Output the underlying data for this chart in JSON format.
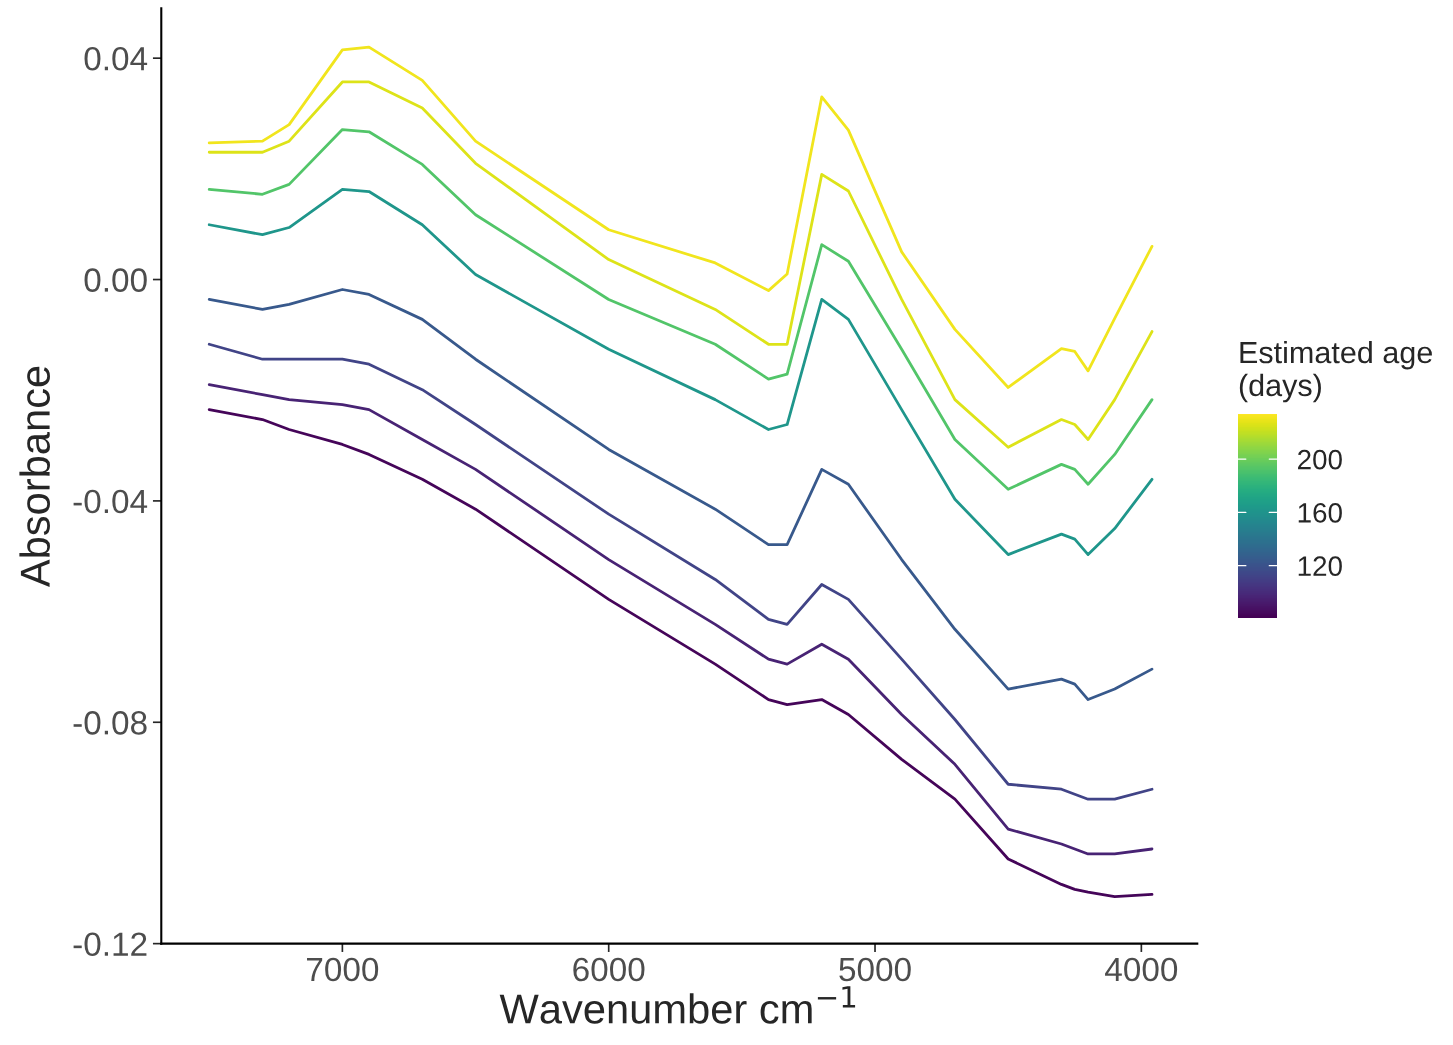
{
  "chart_data": {
    "type": "line",
    "xlabel": "Wavenumber cm$^{−1}$",
    "ylabel": "Absorbance",
    "clabel": "Estimated age\n(days)",
    "x": [
      7500,
      7300,
      7200,
      7000,
      6900,
      6700,
      6500,
      6000,
      5600,
      5400,
      5330,
      5200,
      5100,
      4900,
      4700,
      4500,
      4300,
      4250,
      4200,
      4100,
      3960
    ],
    "series": [
      {
        "color": "#f1e51d",
        "values": [
          0.0247,
          0.025,
          0.028,
          0.0415,
          0.042,
          0.036,
          0.025,
          0.009,
          0.003,
          -0.002,
          0.001,
          0.033,
          0.027,
          0.005,
          -0.009,
          -0.0195,
          -0.0125,
          -0.013,
          -0.0165,
          -0.007,
          0.006
        ]
      },
      {
        "color": "#dde318",
        "values": [
          0.023,
          0.023,
          0.025,
          0.0357,
          0.0357,
          0.031,
          0.021,
          0.0036,
          -0.0054,
          -0.0117,
          -0.0117,
          0.019,
          0.016,
          -0.0036,
          -0.0217,
          -0.0303,
          -0.0253,
          -0.0262,
          -0.0289,
          -0.0217,
          -0.0094
        ]
      },
      {
        "color": "#52c569",
        "values": [
          0.0163,
          0.0154,
          0.0172,
          0.0271,
          0.0267,
          0.0208,
          0.0117,
          -0.0036,
          -0.0117,
          -0.018,
          -0.0171,
          0.0063,
          0.0033,
          -0.0126,
          -0.0289,
          -0.0379,
          -0.0334,
          -0.0343,
          -0.037,
          -0.0316,
          -0.0217
        ]
      },
      {
        "color": "#1f968b",
        "values": [
          0.0099,
          0.0081,
          0.0094,
          0.0163,
          0.0159,
          0.0099,
          0.0009,
          -0.0126,
          -0.0217,
          -0.0271,
          -0.0262,
          -0.0036,
          -0.0072,
          -0.0235,
          -0.0397,
          -0.0497,
          -0.046,
          -0.0469,
          -0.0497,
          -0.045,
          -0.0361
        ]
      },
      {
        "color": "#38598c",
        "values": [
          -0.0036,
          -0.0054,
          -0.0045,
          -0.0018,
          -0.0027,
          -0.0072,
          -0.0144,
          -0.0307,
          -0.0415,
          -0.0479,
          -0.0479,
          -0.0343,
          -0.037,
          -0.0506,
          -0.0632,
          -0.074,
          -0.0722,
          -0.0731,
          -0.0759,
          -0.074,
          -0.0704
        ]
      },
      {
        "color": "#414487",
        "values": [
          -0.0117,
          -0.0144,
          -0.0144,
          -0.0144,
          -0.0153,
          -0.0199,
          -0.0262,
          -0.0424,
          -0.0542,
          -0.0614,
          -0.0623,
          -0.0551,
          -0.0578,
          -0.0686,
          -0.0795,
          -0.0912,
          -0.0921,
          -0.093,
          -0.0939,
          -0.0939,
          -0.0921
        ]
      },
      {
        "color": "#482374",
        "values": [
          -0.019,
          -0.0208,
          -0.0217,
          -0.0226,
          -0.0235,
          -0.0289,
          -0.0343,
          -0.0506,
          -0.0623,
          -0.0686,
          -0.0695,
          -0.0659,
          -0.0686,
          -0.0786,
          -0.0876,
          -0.0993,
          -0.102,
          -0.1029,
          -0.1038,
          -0.1038,
          -0.1029
        ]
      },
      {
        "color": "#450559",
        "values": [
          -0.0235,
          -0.0253,
          -0.0271,
          -0.0298,
          -0.0316,
          -0.0361,
          -0.0415,
          -0.0578,
          -0.0695,
          -0.0759,
          -0.0768,
          -0.0759,
          -0.0786,
          -0.0867,
          -0.0939,
          -0.1047,
          -0.1093,
          -0.1102,
          -0.1107,
          -0.1115,
          -0.1111
        ]
      }
    ],
    "xlim": [
      7680,
      3790
    ],
    "xticks": [
      7000,
      6000,
      5000,
      4000
    ],
    "ylim": [
      -0.12,
      0.049
    ],
    "yticks": [
      {
        "value": -0.12,
        "label": "-0.12"
      },
      {
        "value": -0.08,
        "label": "-0.08"
      },
      {
        "value": -0.04,
        "label": "-0.04"
      },
      {
        "value": 0,
        "label": "0.00"
      },
      {
        "value": 0.04,
        "label": "0.04"
      }
    ],
    "clim": [
      81,
      234
    ],
    "cticks": [
      120,
      160,
      200
    ],
    "grid": false,
    "line_style": "solid"
  }
}
